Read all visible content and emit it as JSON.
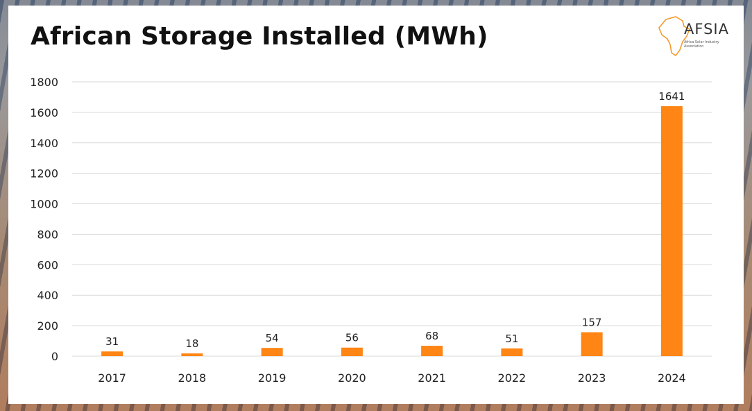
{
  "title": "African Storage Installed (MWh)",
  "logo": {
    "name": "AFSIA",
    "tagline": "Africa Solar Industry Association"
  },
  "chart_data": {
    "type": "bar",
    "categories": [
      "2017",
      "2018",
      "2019",
      "2020",
      "2021",
      "2022",
      "2023",
      "2024"
    ],
    "values": [
      31,
      18,
      54,
      56,
      68,
      51,
      157,
      1641
    ],
    "data_labels": [
      "31",
      "18",
      "54",
      "56",
      "68",
      "51",
      "157",
      "1641"
    ],
    "ylim": [
      0,
      1800
    ],
    "yticks": [
      "0",
      "200",
      "400",
      "600",
      "800",
      "1000",
      "1200",
      "1400",
      "1600",
      "1800"
    ],
    "grid": true,
    "bar_color": "#ff8515",
    "grid_color": "#d9d9d9"
  }
}
